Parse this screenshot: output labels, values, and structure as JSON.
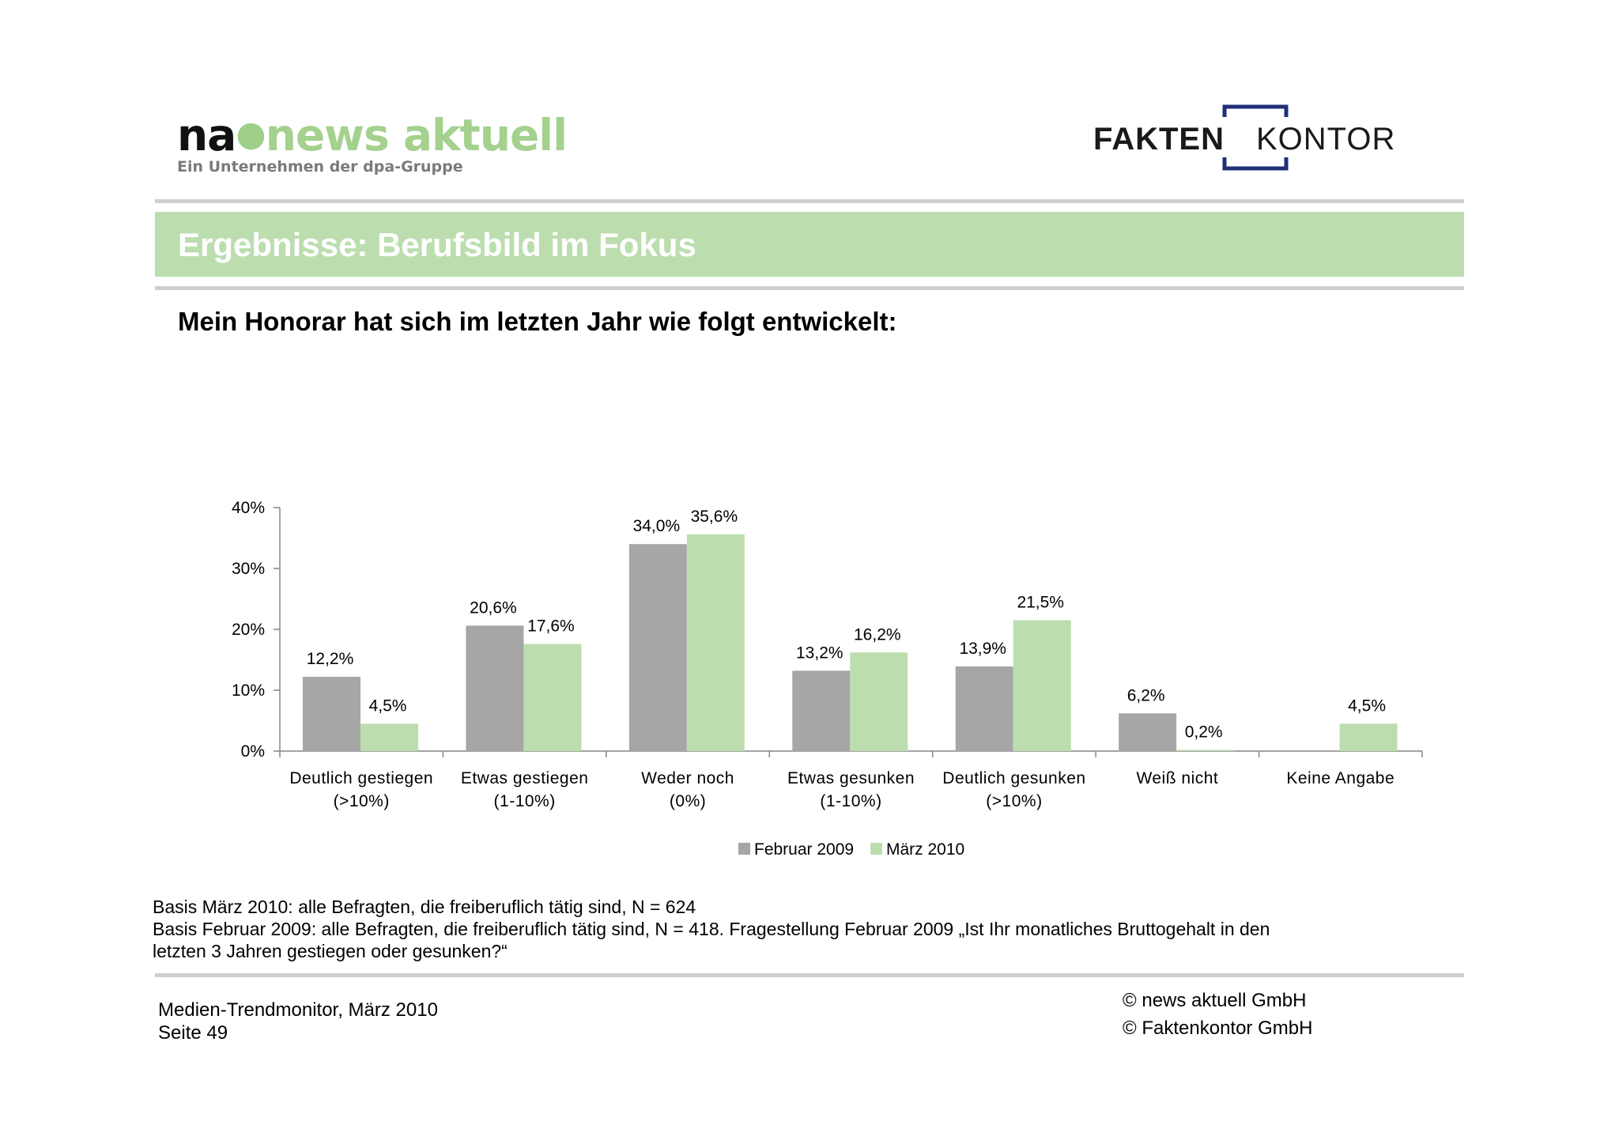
{
  "logos": {
    "na_mark": "na",
    "na_name": "news aktuell",
    "na_tagline": "Ein Unternehmen der dpa-Gruppe",
    "fk_part1": "FAKTEN",
    "fk_part2": "KONTOR"
  },
  "header": {
    "title": "Ergebnisse: Berufsbild im Fokus",
    "subtitle": "Mein Honorar hat sich im letzten Jahr wie folgt entwickelt:"
  },
  "colors": {
    "title_bar": "#bcdeaf",
    "series_2009": "#a6a6a6",
    "series_2010": "#bcdeaf",
    "fk_bracket": "#1f2f78"
  },
  "chart_data": {
    "type": "bar",
    "categories": [
      [
        "Deutlich gestiegen",
        "(>10%)"
      ],
      [
        "Etwas gestiegen",
        "(1-10%)"
      ],
      [
        "Weder noch",
        "(0%)"
      ],
      [
        "Etwas gesunken",
        "(1-10%)"
      ],
      [
        "Deutlich gesunken",
        "(>10%)"
      ],
      [
        "Weiß nicht"
      ],
      [
        "Keine Angabe"
      ]
    ],
    "series": [
      {
        "name": "Februar 2009",
        "values": [
          12.2,
          20.6,
          34.0,
          13.2,
          13.9,
          6.2,
          null
        ],
        "labels": [
          "12,2%",
          "20,6%",
          "34,0%",
          "13,2%",
          "13,9%",
          "6,2%",
          ""
        ]
      },
      {
        "name": "März 2010",
        "values": [
          4.5,
          17.6,
          35.6,
          16.2,
          21.5,
          0.2,
          4.5
        ],
        "labels": [
          "4,5%",
          "17,6%",
          "35,6%",
          "16,2%",
          "21,5%",
          "0,2%",
          "4,5%"
        ]
      }
    ],
    "yticks": [
      "0%",
      "10%",
      "20%",
      "30%",
      "40%"
    ],
    "ylim": [
      0,
      40
    ],
    "legend_position": "bottom",
    "grid": false
  },
  "notes": {
    "line1": "Basis März 2010: alle Befragten, die freiberuflich tätig sind, N = 624",
    "line2": "Basis Februar 2009: alle Befragten, die freiberuflich tätig sind, N = 418. Fragestellung Februar 2009 „Ist Ihr monatliches Bruttogehalt in den",
    "line3": "letzten 3 Jahren gestiegen oder gesunken?“"
  },
  "footer": {
    "left1": "Medien-Trendmonitor, März 2010",
    "left2": "Seite 49",
    "right1": "© news aktuell GmbH",
    "right2": "© Faktenkontor GmbH"
  }
}
